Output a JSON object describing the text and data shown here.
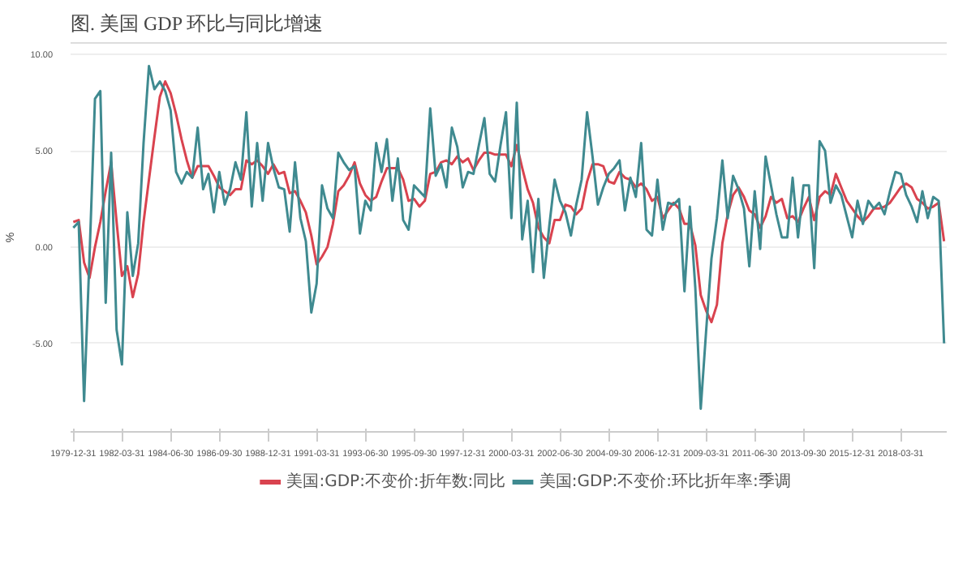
{
  "chart_data": {
    "type": "line",
    "title": "图. 美国 GDP 环比与同比增速",
    "ylabel": "%",
    "x": [
      "1979-12-31",
      "1980-03-31",
      "1980-06-30",
      "1980-09-30",
      "1980-12-31",
      "1981-03-31",
      "1981-06-30",
      "1981-09-30",
      "1981-12-31",
      "1982-03-31",
      "1982-06-30",
      "1982-09-30",
      "1982-12-31",
      "1983-03-31",
      "1983-06-30",
      "1983-09-30",
      "1983-12-31",
      "1984-03-31",
      "1984-06-30",
      "1984-09-30",
      "1984-12-31",
      "1985-03-31",
      "1985-06-30",
      "1985-09-30",
      "1985-12-31",
      "1986-03-31",
      "1986-06-30",
      "1986-09-30",
      "1986-12-31",
      "1987-03-31",
      "1987-06-30",
      "1987-09-30",
      "1987-12-31",
      "1988-03-31",
      "1988-06-30",
      "1988-09-30",
      "1988-12-31",
      "1989-03-31",
      "1989-06-30",
      "1989-09-30",
      "1989-12-31",
      "1990-03-31",
      "1990-06-30",
      "1990-09-30",
      "1990-12-31",
      "1991-03-31",
      "1991-06-30",
      "1991-09-30",
      "1991-12-31",
      "1992-03-31",
      "1992-06-30",
      "1992-09-30",
      "1992-12-31",
      "1993-03-31",
      "1993-06-30",
      "1993-09-30",
      "1993-12-31",
      "1994-03-31",
      "1994-06-30",
      "1994-09-30",
      "1994-12-31",
      "1995-03-31",
      "1995-06-30",
      "1995-09-30",
      "1995-12-31",
      "1996-03-31",
      "1996-06-30",
      "1996-09-30",
      "1996-12-31",
      "1997-03-31",
      "1997-06-30",
      "1997-09-30",
      "1997-12-31",
      "1998-03-31",
      "1998-06-30",
      "1998-09-30",
      "1998-12-31",
      "1999-03-31",
      "1999-06-30",
      "1999-09-30",
      "1999-12-31",
      "2000-03-31",
      "2000-06-30",
      "2000-09-30",
      "2000-12-31",
      "2001-03-31",
      "2001-06-30",
      "2001-09-30",
      "2001-12-31",
      "2002-03-31",
      "2002-06-30",
      "2002-09-30",
      "2002-12-31",
      "2003-03-31",
      "2003-06-30",
      "2003-09-30",
      "2003-12-31",
      "2004-03-31",
      "2004-06-30",
      "2004-09-30",
      "2004-12-31",
      "2005-03-31",
      "2005-06-30",
      "2005-09-30",
      "2005-12-31",
      "2006-03-31",
      "2006-06-30",
      "2006-09-30",
      "2006-12-31",
      "2007-03-31",
      "2007-06-30",
      "2007-09-30",
      "2007-12-31",
      "2008-03-31",
      "2008-06-30",
      "2008-09-30",
      "2008-12-31",
      "2009-03-31",
      "2009-06-30",
      "2009-09-30",
      "2009-12-31",
      "2010-03-31",
      "2010-06-30",
      "2010-09-30",
      "2010-12-31",
      "2011-03-31",
      "2011-06-30",
      "2011-09-30",
      "2011-12-31",
      "2012-03-31",
      "2012-06-30",
      "2012-09-30",
      "2012-12-31",
      "2013-03-31",
      "2013-06-30",
      "2013-09-30",
      "2013-12-31",
      "2014-03-31",
      "2014-06-30",
      "2014-09-30",
      "2014-12-31",
      "2015-03-31",
      "2015-06-30",
      "2015-09-30",
      "2015-12-31",
      "2016-03-31",
      "2016-06-30",
      "2016-09-30",
      "2016-12-31",
      "2017-03-31",
      "2017-06-30",
      "2017-09-30",
      "2017-12-31",
      "2018-03-31",
      "2018-06-30",
      "2018-09-30",
      "2018-12-31",
      "2019-03-31",
      "2019-06-30",
      "2019-09-30",
      "2019-12-31",
      "2020-03-31"
    ],
    "series": [
      {
        "name": "美国:GDP:不变价:折年数:同比",
        "color": "#d9434f",
        "values": [
          1.3,
          1.4,
          -0.8,
          -1.6,
          0.0,
          1.3,
          2.9,
          4.4,
          1.3,
          -1.5,
          -1.0,
          -2.6,
          -1.4,
          1.3,
          3.5,
          5.7,
          7.8,
          8.6,
          8.0,
          6.9,
          5.6,
          4.5,
          3.6,
          4.2,
          4.2,
          4.2,
          3.7,
          3.1,
          2.9,
          2.7,
          3.0,
          3.0,
          4.5,
          4.3,
          4.5,
          4.2,
          3.8,
          4.3,
          3.8,
          3.9,
          2.8,
          2.9,
          2.4,
          1.8,
          0.6,
          -0.9,
          -0.5,
          0.0,
          1.2,
          2.9,
          3.2,
          3.7,
          4.4,
          3.3,
          2.7,
          2.4,
          2.6,
          3.4,
          4.1,
          4.1,
          4.1,
          3.5,
          2.4,
          2.5,
          2.1,
          2.4,
          3.8,
          3.9,
          4.4,
          4.5,
          4.3,
          4.7,
          4.4,
          4.6,
          4.0,
          4.5,
          4.9,
          4.9,
          4.8,
          4.8,
          4.8,
          4.2,
          5.3,
          4.1,
          3.0,
          2.3,
          1.0,
          0.5,
          0.2,
          1.4,
          1.4,
          2.2,
          2.1,
          1.7,
          2.0,
          3.4,
          4.3,
          4.3,
          4.2,
          3.4,
          3.3,
          3.9,
          3.6,
          3.5,
          3.1,
          3.3,
          3.0,
          2.4,
          2.6,
          1.5,
          1.9,
          2.3,
          2.0,
          1.2,
          1.2,
          0.1,
          -2.5,
          -3.3,
          -3.9,
          -3.0,
          0.2,
          1.7,
          2.7,
          3.1,
          2.6,
          1.9,
          1.7,
          1.0,
          1.6,
          2.6,
          2.3,
          2.5,
          1.5,
          1.6,
          1.3,
          2.0,
          2.6,
          1.4,
          2.6,
          2.9,
          2.7,
          3.8,
          3.1,
          2.4,
          2.0,
          1.6,
          1.3,
          1.6,
          2.0,
          2.0,
          2.1,
          2.3,
          2.7,
          3.1,
          3.3,
          3.1,
          2.5,
          2.3,
          2.0,
          2.1,
          2.3,
          0.3
        ]
      },
      {
        "name": "美国:GDP:不变价:环比折年率:季调",
        "color": "#3f8a90",
        "values": [
          1.0,
          1.3,
          -8.0,
          -0.5,
          7.7,
          8.1,
          -2.9,
          4.9,
          -4.3,
          -6.1,
          1.8,
          -1.5,
          0.2,
          5.4,
          9.4,
          8.2,
          8.6,
          8.1,
          7.1,
          3.9,
          3.3,
          3.9,
          3.6,
          6.2,
          3.0,
          3.8,
          1.8,
          3.9,
          2.2,
          3.0,
          4.4,
          3.5,
          7.0,
          2.1,
          5.4,
          2.4,
          5.4,
          4.1,
          3.1,
          3.0,
          0.8,
          4.4,
          1.5,
          0.3,
          -3.4,
          -1.9,
          3.2,
          2.0,
          1.5,
          4.9,
          4.4,
          4.0,
          4.2,
          0.7,
          2.4,
          1.9,
          5.4,
          3.9,
          5.6,
          2.4,
          4.6,
          1.4,
          0.9,
          3.2,
          2.9,
          2.6,
          7.2,
          3.7,
          4.3,
          3.1,
          6.2,
          5.2,
          3.1,
          3.9,
          3.8,
          5.3,
          6.7,
          3.8,
          3.4,
          5.3,
          7.0,
          1.5,
          7.5,
          0.4,
          2.4,
          -1.3,
          2.5,
          -1.6,
          1.1,
          3.5,
          2.4,
          1.8,
          0.6,
          2.2,
          3.5,
          7.0,
          4.7,
          2.2,
          3.1,
          3.8,
          4.1,
          4.5,
          1.9,
          3.6,
          2.6,
          5.4,
          0.9,
          0.6,
          3.5,
          0.9,
          2.3,
          2.2,
          2.5,
          -2.3,
          2.1,
          -2.1,
          -8.4,
          -4.4,
          -0.6,
          1.5,
          4.5,
          1.5,
          3.7,
          3.0,
          2.0,
          -1.0,
          2.9,
          -0.1,
          4.7,
          3.2,
          1.7,
          0.5,
          0.5,
          3.6,
          0.5,
          3.2,
          3.2,
          -1.1,
          5.5,
          5.0,
          2.3,
          3.2,
          2.7,
          1.6,
          0.5,
          2.4,
          1.2,
          2.4,
          2.0,
          2.3,
          1.7,
          2.9,
          3.9,
          3.8,
          2.7,
          2.1,
          1.3,
          2.9,
          1.5,
          2.6,
          2.4,
          -5.0
        ]
      }
    ],
    "xlim": [
      "1979-11-15",
      "2020-05-15"
    ],
    "xticks": [
      "1979-12-31",
      "1982-03-31",
      "1984-06-30",
      "1986-09-30",
      "1988-12-31",
      "1991-03-31",
      "1993-06-30",
      "1995-09-30",
      "1997-12-31",
      "2000-03-31",
      "2002-06-30",
      "2004-09-30",
      "2006-12-31",
      "2009-03-31",
      "2011-06-30",
      "2013-09-30",
      "2015-12-31",
      "2018-03-31"
    ],
    "ylim": [
      -9.6,
      10.6
    ],
    "yticks": [
      {
        "value": -5,
        "label": "-5.00"
      },
      {
        "value": 0,
        "label": "0.00"
      },
      {
        "value": 5,
        "label": "5.00"
      },
      {
        "value": 10,
        "label": "10.00"
      }
    ],
    "grid": "y",
    "legend": "bottom"
  }
}
